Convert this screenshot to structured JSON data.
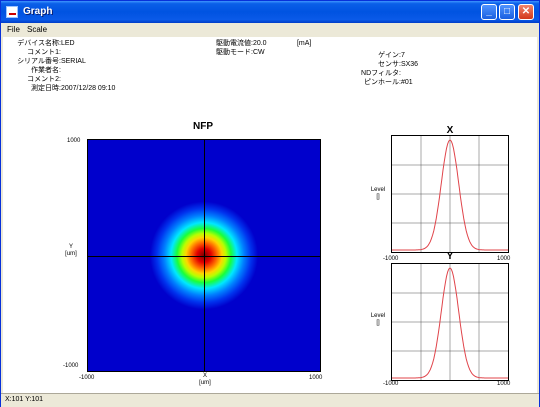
{
  "window": {
    "title": "Graph",
    "minimize": "_",
    "maximize": "□",
    "close": "✕"
  },
  "menu": [
    "File",
    "Scale"
  ],
  "info_left": [
    {
      "label": "デバイス名称",
      "value": "LED"
    },
    {
      "label": "コメント1",
      "value": ""
    },
    {
      "label": "シリアル番号",
      "value": "SERIAL"
    },
    {
      "label": "作業者名",
      "value": ""
    },
    {
      "label": "コメント2",
      "value": ""
    },
    {
      "label": "測定日時",
      "value": "2007/12/28 09:10"
    }
  ],
  "info_mid": [
    {
      "label": "駆動電流値",
      "value": "20.0",
      "unit": "[mA]"
    },
    {
      "label": "駆動モード",
      "value": "CW",
      "unit": ""
    }
  ],
  "info_right": [
    {
      "label": "ゲイン",
      "value": "7"
    },
    {
      "label": "センサ",
      "value": "SX36"
    },
    {
      "label": "NDフィルタ",
      "value": ""
    },
    {
      "label": "ピンホール",
      "value": "#01"
    }
  ],
  "nfp": {
    "title": "NFP",
    "y_top": "1000",
    "y_bottom": "-1000",
    "x_left": "-1000",
    "x_right": "1000",
    "x_label": "X",
    "x_unit": "[um]",
    "y_label": "Y",
    "y_unit": "[um]"
  },
  "profile_x": {
    "title": "X",
    "ylabel": "Level",
    "yunit": "[]",
    "x_left": "-1000",
    "x_right": "1000"
  },
  "profile_y": {
    "title": "Y",
    "ylabel": "Level",
    "yunit": "[]",
    "x_left": "-1000",
    "x_right": "1000"
  },
  "status": {
    "text": "X:101 Y:101"
  },
  "colors": {
    "curve": "#e0444a",
    "grid": "#555555",
    "titlebar": "#0053e1"
  }
}
